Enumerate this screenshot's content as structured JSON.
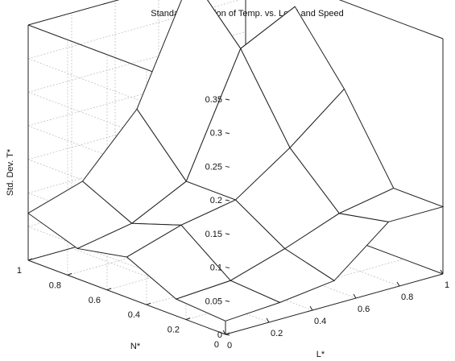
{
  "chart_data": {
    "type": "surface",
    "title": "Standard Deviation of Temp. vs. Load and Speed",
    "xlabel": "L*",
    "ylabel": "N*",
    "zlabel": "Std. Dev. T*",
    "x": [
      0,
      0.25,
      0.5,
      0.75,
      1
    ],
    "y": [
      0,
      0.25,
      0.5,
      0.75,
      1
    ],
    "z": [
      [
        0.02,
        0.025,
        0.035,
        0.1,
        0.1
      ],
      [
        0.025,
        0.03,
        0.055,
        0.085,
        0.1
      ],
      [
        0.06,
        0.085,
        0.1,
        0.155,
        0.22
      ],
      [
        0.045,
        0.06,
        0.1,
        0.275,
        0.315
      ],
      [
        0.07,
        0.095,
        0.18,
        0.355,
        0.195
      ]
    ],
    "xlim": [
      0,
      1
    ],
    "ylim": [
      0,
      1
    ],
    "zlim": [
      0,
      0.35
    ],
    "xticks": [
      "0",
      "0.2",
      "0.4",
      "0.6",
      "0.8",
      "1"
    ],
    "yticks": [
      "0",
      "0.2",
      "0.4",
      "0.6",
      "0.8",
      "1"
    ],
    "zticks": [
      "0",
      "0.05",
      "0.1",
      "0.15",
      "0.2",
      "0.25",
      "0.3",
      "0.35"
    ],
    "grid": true
  }
}
